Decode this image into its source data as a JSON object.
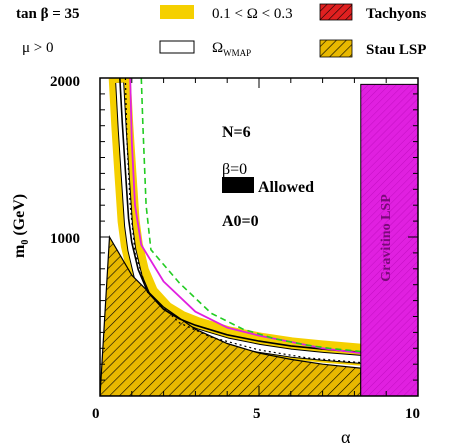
{
  "legend": {
    "tan_beta": "tan β = 35",
    "mu": "μ  >  0",
    "omega_range": "0.1 < Ω < 0.3",
    "omega_wmap": "Ω",
    "omega_wmap_sub": "WMAP",
    "tachyons": "Tachyons",
    "stau_lsp": "Stau LSP"
  },
  "annotations": {
    "n": "N=6",
    "beta": "β=0",
    "allowed": "Allowed",
    "a0": "A0=0",
    "gravitino": "Gravitino LSP"
  },
  "axes": {
    "xlabel": "α",
    "ylabel": "m",
    "ylabel_sub": "0",
    "ylabel_unit": "(GeV)",
    "xlim": [
      0,
      10
    ],
    "ylim": [
      0,
      2000
    ],
    "xticks": [
      "0",
      "5",
      "10"
    ],
    "yticks": [
      "1000",
      "2000"
    ]
  },
  "colors": {
    "omega_band": "#f5d000",
    "stau_hatch": "#e8b800",
    "tachyon": "#e02020",
    "gravitino": "#e020e0",
    "wmap_fill": "#ffffff",
    "magenta_line": "#e020e0",
    "green_dashed": "#22cc22",
    "allowed": "#000000"
  },
  "chart_data": {
    "type": "area",
    "title": "",
    "xlabel": "α",
    "ylabel": "m0 (GeV)",
    "xlim": [
      0,
      10
    ],
    "ylim": [
      0,
      2000
    ],
    "regions": {
      "stau_lsp": {
        "x": [
          0,
          0.3,
          1.0,
          2.0,
          3.0,
          4.0,
          5.0,
          6.0,
          7.0,
          8.2,
          8.2
        ],
        "y": [
          0,
          1000,
          760,
          560,
          420,
          330,
          270,
          230,
          200,
          175,
          0
        ]
      },
      "gravitino_lsp": {
        "x": [
          8.2,
          10
        ],
        "y": [
          0,
          1960
        ]
      },
      "omega_band_left": {
        "x": [
          0.62,
          0.7,
          0.8,
          0.9,
          1.0,
          1.2,
          1.5,
          2.0,
          2.5
        ],
        "y": [
          2000,
          1700,
          1400,
          1100,
          950,
          780,
          640,
          530,
          470
        ]
      },
      "omega_band_lower": {
        "x": [
          2.5,
          3.0,
          4.0,
          5.0,
          6.0,
          7.0,
          8.2
        ],
        "y": [
          470,
          430,
          370,
          330,
          300,
          280,
          260
        ]
      }
    },
    "series": [
      {
        "name": "",
        "style": "magenta-solid",
        "x": [
          0.95,
          1.0,
          1.1,
          1.3,
          2.0,
          3.0,
          4.0,
          5.0,
          6.0,
          7.0,
          8.2
        ],
        "y": [
          2000,
          1600,
          1200,
          950,
          720,
          530,
          430,
          380,
          340,
          300,
          270
        ]
      },
      {
        "name": "",
        "style": "green-dashed",
        "x": [
          1.3,
          1.35,
          1.45,
          1.6,
          2.5,
          3.5,
          4.5,
          5.5,
          6.5,
          7.2,
          8.2
        ],
        "y": [
          2000,
          1700,
          1200,
          920,
          710,
          520,
          420,
          360,
          320,
          300,
          280
        ]
      },
      {
        "name": "",
        "style": "black-dotted",
        "x": [
          0.8,
          0.85,
          0.95,
          1.1,
          1.5,
          2.5,
          3.5,
          5.0,
          6.5,
          8.2
        ],
        "y": [
          2000,
          1600,
          1200,
          900,
          650,
          460,
          370,
          290,
          240,
          210
        ]
      }
    ]
  }
}
